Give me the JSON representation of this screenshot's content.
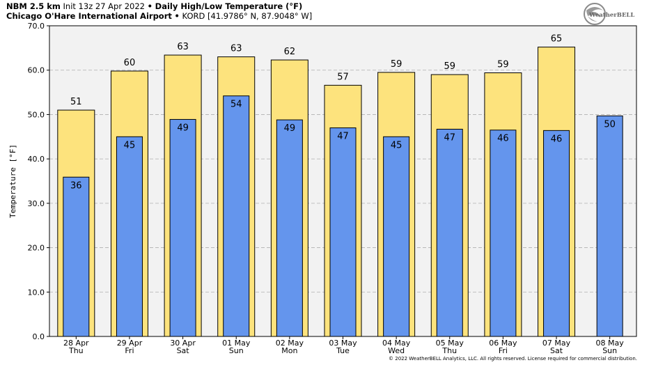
{
  "header": {
    "model": "NBM 2.5 km",
    "init": "Init 13z 27 Apr 2022",
    "sep": "•",
    "product": "Daily High/Low Temperature (°F)",
    "location": "Chicago O'Hare International Airport",
    "station": "KORD [41.9786° N, 87.9048° W]"
  },
  "logo": {
    "text": "WeatherBELL"
  },
  "footer": {
    "copyright": "© 2022 WeatherBELL Analytics, LLC. All rights reserved. License required for commercial distribution."
  },
  "colors": {
    "high_bar": "#fde37d",
    "low_bar": "#6495ed",
    "plot_bg": "#f2f2f2",
    "grid": "#b0b0b0"
  },
  "chart_data": {
    "type": "bar",
    "ylabel": "Temperature [°F]",
    "ylim": [
      0,
      70
    ],
    "yticks": [
      "0.0",
      "10.0",
      "20.0",
      "30.0",
      "40.0",
      "50.0",
      "60.0",
      "70.0"
    ],
    "grid": true,
    "categories": [
      [
        "28 Apr",
        "Thu"
      ],
      [
        "29 Apr",
        "Fri"
      ],
      [
        "30 Apr",
        "Sat"
      ],
      [
        "01 May",
        "Sun"
      ],
      [
        "02 May",
        "Mon"
      ],
      [
        "03 May",
        "Tue"
      ],
      [
        "04 May",
        "Wed"
      ],
      [
        "05 May",
        "Thu"
      ],
      [
        "06 May",
        "Fri"
      ],
      [
        "07 May",
        "Sat"
      ],
      [
        "08 May",
        "Sun"
      ]
    ],
    "series": [
      {
        "key": "high",
        "values": [
          51,
          59.8,
          63.4,
          63,
          62.3,
          56.6,
          59.5,
          59,
          59.4,
          65.2,
          null
        ],
        "labels": [
          "51",
          "60",
          "63",
          "63",
          "62",
          "57",
          "59",
          "59",
          "59",
          "65",
          ""
        ]
      },
      {
        "key": "low",
        "values": [
          35.9,
          45,
          48.9,
          54.2,
          48.8,
          47,
          45,
          46.7,
          46.5,
          46.4,
          49.7
        ],
        "labels": [
          "36",
          "45",
          "49",
          "54",
          "49",
          "47",
          "45",
          "47",
          "46",
          "46",
          "50"
        ]
      }
    ]
  }
}
